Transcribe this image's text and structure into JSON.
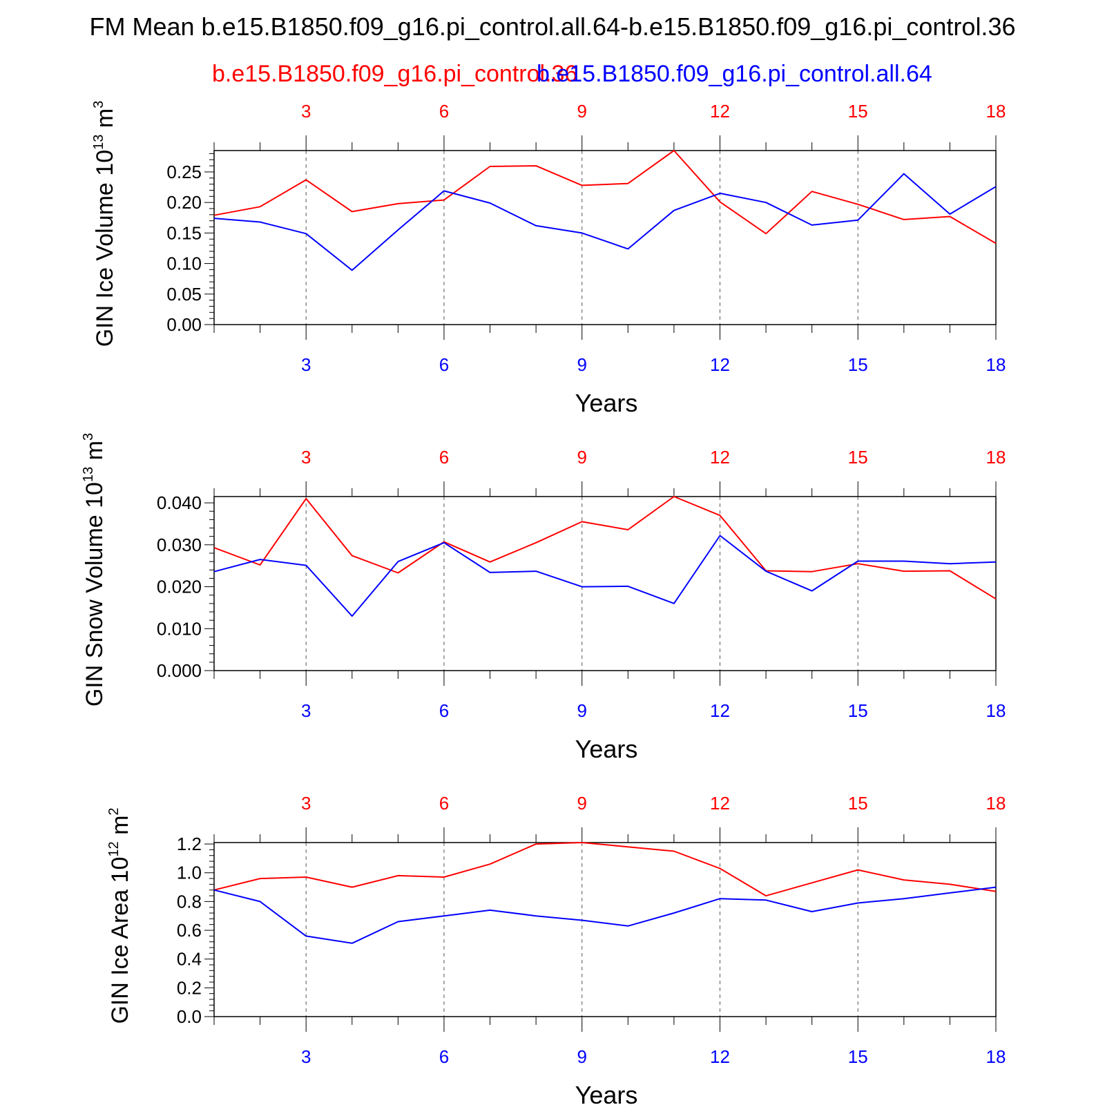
{
  "title": "FM Mean b.e15.B1850.f09_g16.pi_control.all.64-b.e15.B1850.f09_g16.pi_control.36",
  "legend": {
    "series_a": "b.e15.B1850.f09_g16.pi_control.36",
    "series_b": "b.e15.B1850.f09_g16.pi_control.all.64"
  },
  "colors": {
    "series_a": "#ff0000",
    "series_b": "#0000ff",
    "axis": "#000000"
  },
  "chart_data": [
    {
      "type": "line",
      "ylabel": "GIN Ice Volume 10",
      "ylabel_exp": "13",
      "ylabel_unit": " m",
      "ylabel_unit_exp": "3",
      "xlabel": "Years",
      "xlim": [
        1,
        18
      ],
      "ylim": [
        0,
        0.285
      ],
      "yticks": [
        0,
        0.05,
        0.1,
        0.15,
        0.2,
        0.25
      ],
      "ytick_labels": [
        "0.00",
        "0.05",
        "0.10",
        "0.15",
        "0.20",
        "0.25"
      ],
      "x": [
        1,
        2,
        3,
        4,
        5,
        6,
        7,
        8,
        9,
        10,
        11,
        12,
        13,
        14,
        15,
        16,
        17,
        18
      ],
      "xticks": [
        3,
        6,
        9,
        12,
        15,
        18
      ],
      "series": [
        {
          "values": [
            0.179,
            0.193,
            0.237,
            0.185,
            0.198,
            0.204,
            0.259,
            0.26,
            0.228,
            0.231,
            0.285,
            0.201,
            0.149,
            0.218,
            0.197,
            0.172,
            0.177,
            0.133
          ]
        },
        {
          "values": [
            0.174,
            0.168,
            0.149,
            0.089,
            0.155,
            0.219,
            0.199,
            0.162,
            0.15,
            0.124,
            0.187,
            0.215,
            0.2,
            0.163,
            0.171,
            0.247,
            0.181,
            0.226
          ]
        }
      ]
    },
    {
      "type": "line",
      "ylabel": "GIN Snow Volume 10",
      "ylabel_exp": "13",
      "ylabel_unit": " m",
      "ylabel_unit_exp": "3",
      "xlabel": "Years",
      "xlim": [
        1,
        18
      ],
      "ylim": [
        0,
        0.0415
      ],
      "yticks": [
        0,
        0.01,
        0.02,
        0.03,
        0.04
      ],
      "ytick_labels": [
        "0.000",
        "0.010",
        "0.020",
        "0.030",
        "0.040"
      ],
      "x": [
        1,
        2,
        3,
        4,
        5,
        6,
        7,
        8,
        9,
        10,
        11,
        12,
        13,
        14,
        15,
        16,
        17,
        18
      ],
      "xticks": [
        3,
        6,
        9,
        12,
        15,
        18
      ],
      "series": [
        {
          "values": [
            0.0293,
            0.0252,
            0.041,
            0.0274,
            0.0233,
            0.0307,
            0.0259,
            0.0305,
            0.0355,
            0.0336,
            0.0415,
            0.037,
            0.0238,
            0.0236,
            0.0255,
            0.0237,
            0.0238,
            0.0171
          ]
        },
        {
          "values": [
            0.0236,
            0.0265,
            0.0251,
            0.013,
            0.026,
            0.0305,
            0.0234,
            0.0237,
            0.02,
            0.0201,
            0.016,
            0.0322,
            0.0237,
            0.019,
            0.0261,
            0.0261,
            0.0255,
            0.0259
          ]
        }
      ]
    },
    {
      "type": "line",
      "ylabel": "GIN Ice Area 10",
      "ylabel_exp": "12",
      "ylabel_unit": " m",
      "ylabel_unit_exp": "2",
      "xlabel": "Years",
      "xlim": [
        1,
        18
      ],
      "ylim": [
        0,
        1.21
      ],
      "yticks": [
        0,
        0.2,
        0.4,
        0.6,
        0.8,
        1.0,
        1.2
      ],
      "ytick_labels": [
        "0.0",
        "0.2",
        "0.4",
        "0.6",
        "0.8",
        "1.0",
        "1.2"
      ],
      "x": [
        1,
        2,
        3,
        4,
        5,
        6,
        7,
        8,
        9,
        10,
        11,
        12,
        13,
        14,
        15,
        16,
        17,
        18
      ],
      "xticks": [
        3,
        6,
        9,
        12,
        15,
        18
      ],
      "series": [
        {
          "values": [
            0.88,
            0.96,
            0.97,
            0.9,
            0.98,
            0.97,
            1.06,
            1.2,
            1.21,
            1.18,
            1.15,
            1.03,
            0.84,
            0.93,
            1.02,
            0.95,
            0.92,
            0.87
          ]
        },
        {
          "values": [
            0.88,
            0.8,
            0.56,
            0.51,
            0.66,
            0.7,
            0.74,
            0.7,
            0.67,
            0.63,
            0.72,
            0.82,
            0.81,
            0.73,
            0.79,
            0.82,
            0.86,
            0.9
          ]
        }
      ]
    }
  ]
}
